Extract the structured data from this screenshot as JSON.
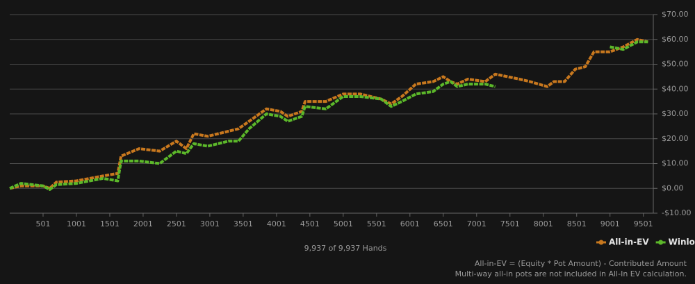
{
  "chart_data": {
    "type": "line",
    "x": [
      1,
      170,
      501,
      600,
      700,
      1001,
      1400,
      1620,
      1670,
      1940,
      2250,
      2500,
      2650,
      2760,
      2970,
      3280,
      3430,
      3590,
      3850,
      4060,
      4170,
      4380,
      4430,
      4740,
      5000,
      5260,
      5570,
      5720,
      5880,
      6090,
      6350,
      6500,
      6610,
      6710,
      6870,
      7130,
      7280,
      7640,
      7800,
      8060,
      8160,
      8320,
      8480,
      8630,
      8760,
      9000,
      9200,
      9410,
      9570
    ],
    "series": [
      {
        "name": "All-in-EV",
        "color": "#c8781e",
        "values": [
          0,
          1,
          1,
          0,
          2.5,
          3,
          5,
          6,
          13,
          16,
          15,
          19,
          16,
          22,
          21,
          23,
          24,
          27,
          32,
          31,
          29,
          31,
          35,
          35,
          38,
          38,
          36,
          34,
          37,
          42,
          43,
          45,
          43,
          42,
          44,
          43,
          46,
          44,
          43,
          41,
          43,
          43,
          48,
          49,
          55,
          55,
          57,
          60,
          59
        ]
      },
      {
        "name": "Winloss",
        "color": "#5cb82a",
        "values": [
          0,
          2,
          1,
          -0.5,
          1.5,
          2,
          4,
          3,
          11,
          11,
          10,
          15,
          14,
          18,
          17,
          19,
          19,
          24,
          30,
          29,
          27,
          29,
          33,
          32,
          37,
          37,
          36,
          33,
          35,
          38,
          39,
          42,
          43,
          41,
          42,
          42,
          41,
          null,
          null,
          null,
          null,
          null,
          null,
          null,
          null,
          57,
          56,
          59,
          59
        ]
      }
    ],
    "xlim": [
      1,
      9650
    ],
    "xticks": [
      501,
      1001,
      1501,
      2001,
      2501,
      3001,
      3501,
      4001,
      4501,
      5001,
      5501,
      6001,
      6501,
      7001,
      7501,
      8001,
      8501,
      9001,
      9501
    ],
    "ylim": [
      -10,
      70
    ],
    "yticks": [
      {
        "value": -10,
        "label": "-$10.00"
      },
      {
        "value": 0,
        "label": "$0.00"
      },
      {
        "value": 10,
        "label": "$10.00"
      },
      {
        "value": 20,
        "label": "$20.00"
      },
      {
        "value": 30,
        "label": "$30.00"
      },
      {
        "value": 40,
        "label": "$40.00"
      },
      {
        "value": 50,
        "label": "$50.00"
      },
      {
        "value": 60,
        "label": "$60.00"
      },
      {
        "value": 70,
        "label": "$70.00"
      }
    ],
    "grid": true,
    "caption": "9,937 of 9,937 Hands",
    "notes": [
      "All-in-EV = (Equity * Pot Amount) - Contributed Amount",
      "Multi-way all-in pots are not included in All-In EV calculation."
    ]
  }
}
